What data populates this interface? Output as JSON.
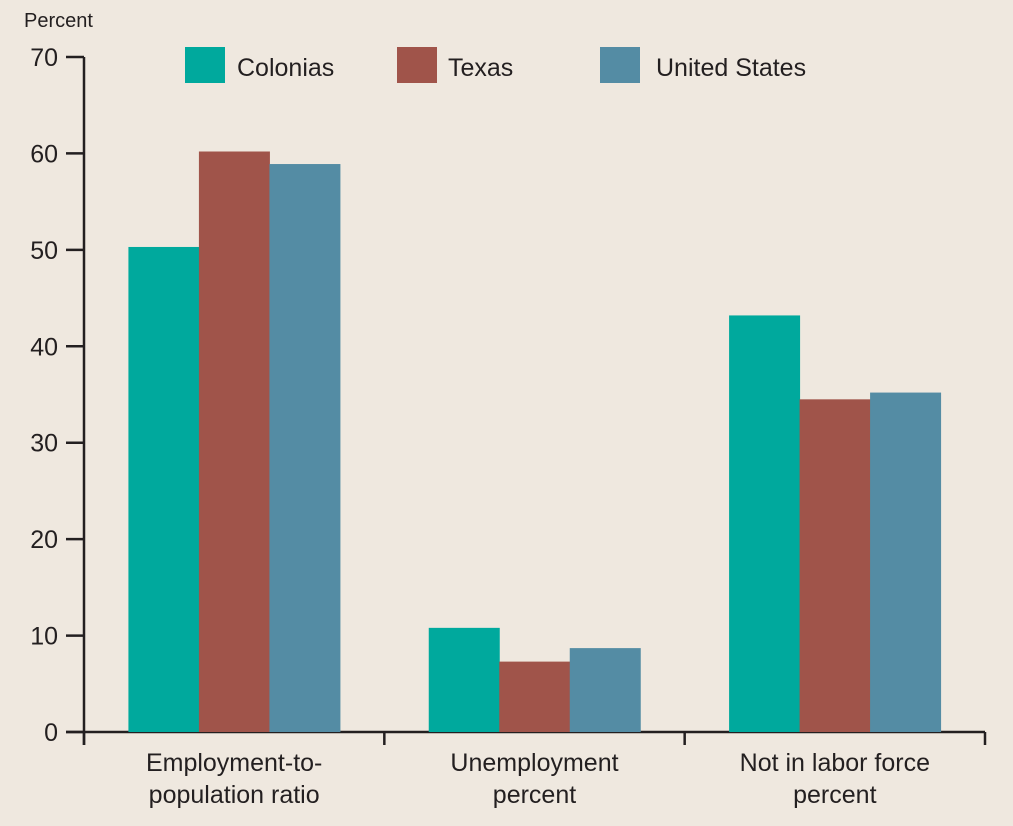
{
  "chart_data": {
    "type": "bar",
    "ylabel": "Percent",
    "ylim": [
      0,
      70
    ],
    "yticks": [
      0,
      10,
      20,
      30,
      40,
      50,
      60,
      70
    ],
    "categories": [
      [
        "Employment-to-",
        "population ratio"
      ],
      [
        "Unemployment",
        "percent"
      ],
      [
        "Not in labor force",
        "percent"
      ]
    ],
    "series": [
      {
        "name": "Colonias",
        "color": "#00a99d",
        "values": [
          50.3,
          10.8,
          43.2
        ]
      },
      {
        "name": "Texas",
        "color": "#a0544a",
        "values": [
          60.2,
          7.3,
          34.5
        ]
      },
      {
        "name": "United States",
        "color": "#548ca4",
        "values": [
          58.9,
          8.7,
          35.2
        ]
      }
    ],
    "legend_position": "top",
    "grid": false
  }
}
